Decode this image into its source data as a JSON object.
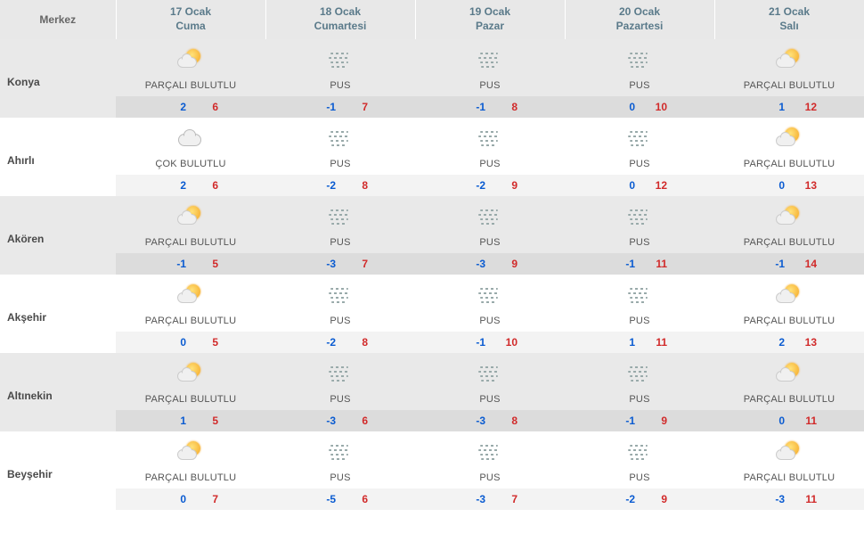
{
  "header": {
    "merkez": "Merkez",
    "days": [
      {
        "date": "17 Ocak",
        "dow": "Cuma"
      },
      {
        "date": "18 Ocak",
        "dow": "Cumartesi"
      },
      {
        "date": "19 Ocak",
        "dow": "Pazar"
      },
      {
        "date": "20 Ocak",
        "dow": "Pazartesi"
      },
      {
        "date": "21 Ocak",
        "dow": "Salı"
      }
    ]
  },
  "conditions": {
    "partly": "PARÇALI BULUTLU",
    "mist": "PUS",
    "cloudy": "ÇOK BULUTLU"
  },
  "colors": {
    "header_bg": "#e8e8e8",
    "header_text": "#5a7a8a",
    "stripe_bg": "#e9e9e9",
    "stripe_temp_bg": "#dcdcdc",
    "temp_low": "#0a5bd1",
    "temp_high": "#d12a2a"
  },
  "locations": [
    {
      "name": "Konya",
      "forecast": [
        {
          "icon": "partly",
          "label": "PARÇALI BULUTLU",
          "low": "2",
          "high": "6"
        },
        {
          "icon": "mist",
          "label": "PUS",
          "low": "-1",
          "high": "7"
        },
        {
          "icon": "mist",
          "label": "PUS",
          "low": "-1",
          "high": "8"
        },
        {
          "icon": "mist",
          "label": "PUS",
          "low": "0",
          "high": "10"
        },
        {
          "icon": "partly",
          "label": "PARÇALI BULUTLU",
          "low": "1",
          "high": "12"
        }
      ]
    },
    {
      "name": "Ahırlı",
      "forecast": [
        {
          "icon": "cloudy",
          "label": "ÇOK BULUTLU",
          "low": "2",
          "high": "6"
        },
        {
          "icon": "mist",
          "label": "PUS",
          "low": "-2",
          "high": "8"
        },
        {
          "icon": "mist",
          "label": "PUS",
          "low": "-2",
          "high": "9"
        },
        {
          "icon": "mist",
          "label": "PUS",
          "low": "0",
          "high": "12"
        },
        {
          "icon": "partly",
          "label": "PARÇALI BULUTLU",
          "low": "0",
          "high": "13"
        }
      ]
    },
    {
      "name": "Akören",
      "forecast": [
        {
          "icon": "partly",
          "label": "PARÇALI BULUTLU",
          "low": "-1",
          "high": "5"
        },
        {
          "icon": "mist",
          "label": "PUS",
          "low": "-3",
          "high": "7"
        },
        {
          "icon": "mist",
          "label": "PUS",
          "low": "-3",
          "high": "9"
        },
        {
          "icon": "mist",
          "label": "PUS",
          "low": "-1",
          "high": "11"
        },
        {
          "icon": "partly",
          "label": "PARÇALI BULUTLU",
          "low": "-1",
          "high": "14"
        }
      ]
    },
    {
      "name": "Akşehir",
      "forecast": [
        {
          "icon": "partly",
          "label": "PARÇALI BULUTLU",
          "low": "0",
          "high": "5"
        },
        {
          "icon": "mist",
          "label": "PUS",
          "low": "-2",
          "high": "8"
        },
        {
          "icon": "mist",
          "label": "PUS",
          "low": "-1",
          "high": "10"
        },
        {
          "icon": "mist",
          "label": "PUS",
          "low": "1",
          "high": "11"
        },
        {
          "icon": "partly",
          "label": "PARÇALI BULUTLU",
          "low": "2",
          "high": "13"
        }
      ]
    },
    {
      "name": "Altınekin",
      "forecast": [
        {
          "icon": "partly",
          "label": "PARÇALI BULUTLU",
          "low": "1",
          "high": "5"
        },
        {
          "icon": "mist",
          "label": "PUS",
          "low": "-3",
          "high": "6"
        },
        {
          "icon": "mist",
          "label": "PUS",
          "low": "-3",
          "high": "8"
        },
        {
          "icon": "mist",
          "label": "PUS",
          "low": "-1",
          "high": "9"
        },
        {
          "icon": "partly",
          "label": "PARÇALI BULUTLU",
          "low": "0",
          "high": "11"
        }
      ]
    },
    {
      "name": "Beyşehir",
      "forecast": [
        {
          "icon": "partly",
          "label": "PARÇALI BULUTLU",
          "low": "0",
          "high": "7"
        },
        {
          "icon": "mist",
          "label": "PUS",
          "low": "-5",
          "high": "6"
        },
        {
          "icon": "mist",
          "label": "PUS",
          "low": "-3",
          "high": "7"
        },
        {
          "icon": "mist",
          "label": "PUS",
          "low": "-2",
          "high": "9"
        },
        {
          "icon": "partly",
          "label": "PARÇALI BULUTLU",
          "low": "-3",
          "high": "11"
        }
      ]
    }
  ]
}
